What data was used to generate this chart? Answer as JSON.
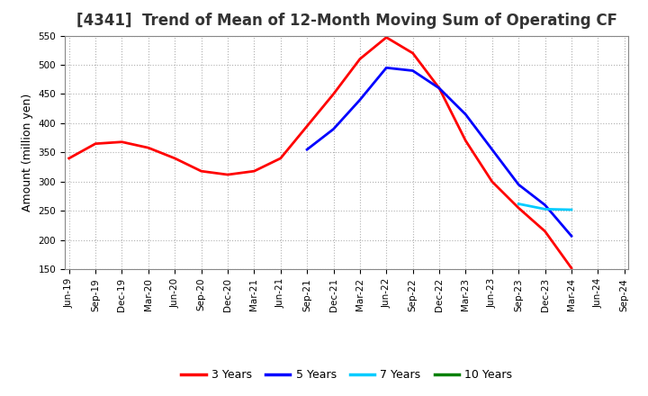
{
  "title": "[4341]  Trend of Mean of 12-Month Moving Sum of Operating CF",
  "ylabel": "Amount (million yen)",
  "ylim": [
    150,
    550
  ],
  "yticks": [
    150,
    200,
    250,
    300,
    350,
    400,
    450,
    500,
    550
  ],
  "background_color": "#ffffff",
  "plot_bg_color": "#ffffff",
  "grid_color": "#b0b0b0",
  "series": {
    "3yr": {
      "color": "#ff0000",
      "label": "3 Years",
      "x": [
        "Jun-19",
        "Sep-19",
        "Dec-19",
        "Mar-20",
        "Jun-20",
        "Sep-20",
        "Dec-20",
        "Mar-21",
        "Jun-21",
        "Sep-21",
        "Dec-21",
        "Mar-22",
        "Jun-22",
        "Sep-22",
        "Dec-22",
        "Mar-23",
        "Jun-23",
        "Sep-23",
        "Dec-23",
        "Mar-24"
      ],
      "y": [
        340,
        365,
        368,
        358,
        340,
        318,
        312,
        318,
        340,
        395,
        450,
        510,
        547,
        520,
        460,
        370,
        300,
        255,
        215,
        152
      ]
    },
    "5yr": {
      "color": "#0000ff",
      "label": "5 Years",
      "x": [
        "Sep-21",
        "Dec-21",
        "Mar-22",
        "Jun-22",
        "Sep-22",
        "Dec-22",
        "Mar-23",
        "Jun-23",
        "Sep-23",
        "Dec-23",
        "Mar-24"
      ],
      "y": [
        355,
        390,
        440,
        495,
        490,
        460,
        415,
        355,
        295,
        260,
        207
      ]
    },
    "7yr": {
      "color": "#00ccff",
      "label": "7 Years",
      "x": [
        "Sep-23",
        "Dec-23",
        "Mar-24"
      ],
      "y": [
        262,
        253,
        252
      ]
    },
    "10yr": {
      "color": "#008000",
      "label": "10 Years",
      "x": [],
      "y": []
    }
  },
  "x_tick_labels": [
    "Jun-19",
    "Sep-19",
    "Dec-19",
    "Mar-20",
    "Jun-20",
    "Sep-20",
    "Dec-20",
    "Mar-21",
    "Jun-21",
    "Sep-21",
    "Dec-21",
    "Mar-22",
    "Jun-22",
    "Sep-22",
    "Dec-22",
    "Mar-23",
    "Jun-23",
    "Sep-23",
    "Dec-23",
    "Mar-24",
    "Jun-24",
    "Sep-24"
  ],
  "title_fontsize": 12,
  "label_fontsize": 9,
  "tick_fontsize": 7.5,
  "legend_fontsize": 9,
  "linewidth": 2.0
}
